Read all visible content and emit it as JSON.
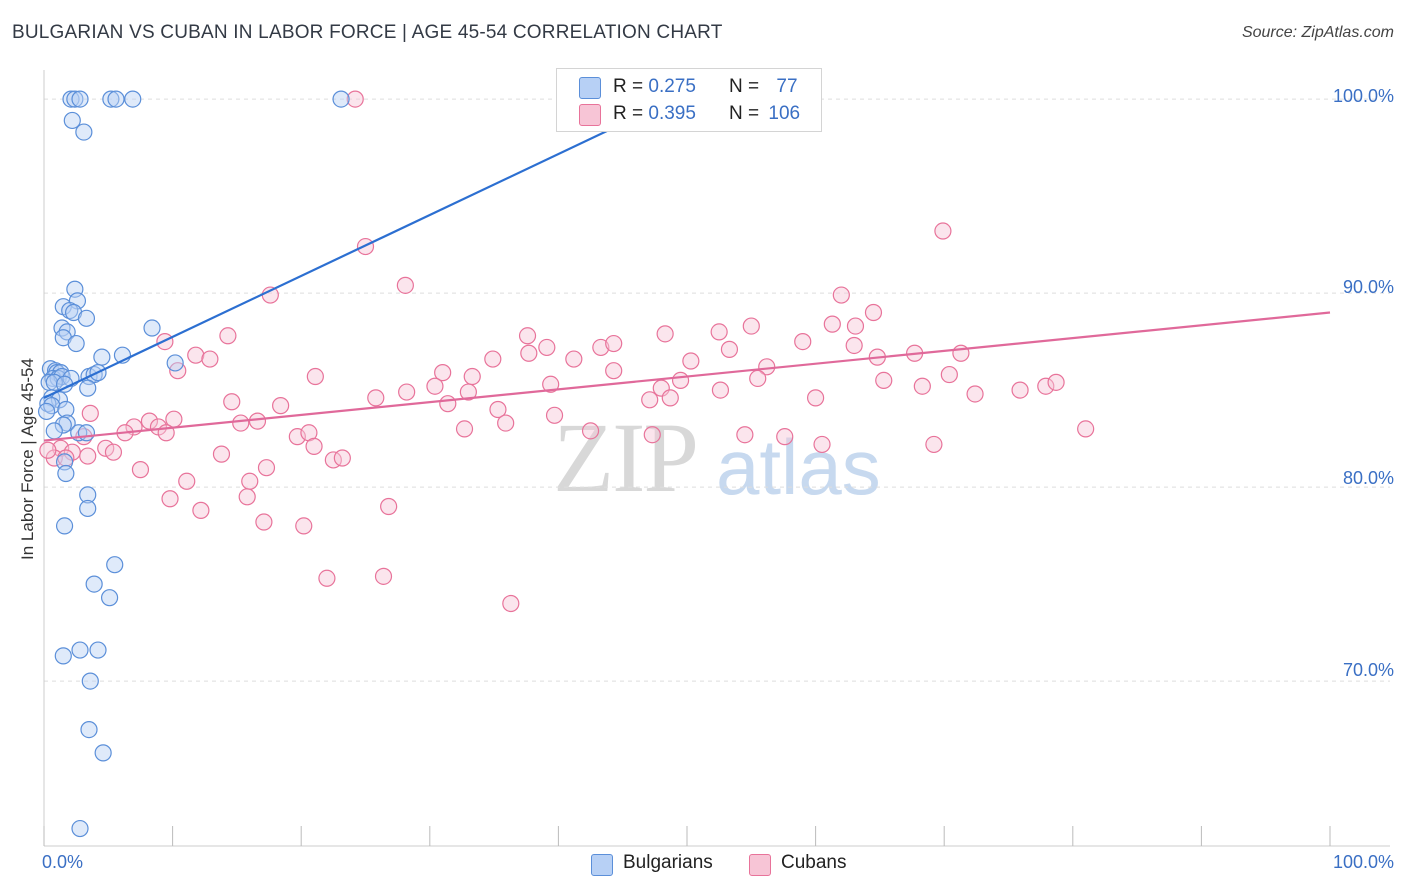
{
  "header": {
    "title": "BULGARIAN VS CUBAN IN LABOR FORCE | AGE 45-54 CORRELATION CHART",
    "source": "Source: ZipAtlas.com"
  },
  "watermark": {
    "zip": "ZIP",
    "atlas": "atlas"
  },
  "legend": {
    "r_label": "R =",
    "n_label": "N =",
    "bulgarians": {
      "r": "0.275",
      "n": "77"
    },
    "cubans": {
      "r": "0.395",
      "n": "106"
    }
  },
  "bottom_legend": {
    "bulgarians": "Bulgarians",
    "cubans": "Cubans"
  },
  "colors": {
    "blue": "#5b8fd9",
    "blue_fill": "#b7d0f5",
    "pink": "#e8739a",
    "pink_fill": "#f7c5d6",
    "blue_line": "#2c6fd1",
    "pink_line": "#e0699a"
  },
  "chart_data": {
    "type": "scatter",
    "title": "BULGARIAN VS CUBAN IN LABOR FORCE | AGE 45-54 CORRELATION CHART",
    "xlabel": "",
    "ylabel": "In Labor Force | Age 45-54",
    "xlim": [
      0,
      100
    ],
    "ylim": [
      61.5,
      101.5
    ],
    "x_tick_labels": [
      "0.0%",
      "100.0%"
    ],
    "y_ticks": [
      {
        "value": 70,
        "label": "70.0%"
      },
      {
        "value": 80,
        "label": "80.0%"
      },
      {
        "value": 90,
        "label": "90.0%"
      },
      {
        "value": 100,
        "label": "100.0%"
      }
    ],
    "grid": true,
    "legend_position": "top-center",
    "series": [
      {
        "name": "Bulgarians",
        "r": 0.275,
        "n": 77,
        "trend": {
          "x": [
            0,
            50.6
          ],
          "y": [
            84.6,
            100.5
          ]
        },
        "points": [
          [
            2.1,
            100
          ],
          [
            2.4,
            100
          ],
          [
            2.8,
            100
          ],
          [
            5.2,
            100
          ],
          [
            5.6,
            100
          ],
          [
            6.9,
            100
          ],
          [
            23.1,
            100
          ],
          [
            2.2,
            98.9
          ],
          [
            3.1,
            98.3
          ],
          [
            2.4,
            90.2
          ],
          [
            2.6,
            89.6
          ],
          [
            1.5,
            89.3
          ],
          [
            2.0,
            89.1
          ],
          [
            2.3,
            89.0
          ],
          [
            3.3,
            88.7
          ],
          [
            1.4,
            88.2
          ],
          [
            1.8,
            88.0
          ],
          [
            1.5,
            87.7
          ],
          [
            2.5,
            87.4
          ],
          [
            8.4,
            88.2
          ],
          [
            6.1,
            86.8
          ],
          [
            4.5,
            86.7
          ],
          [
            10.2,
            86.4
          ],
          [
            0.5,
            86.1
          ],
          [
            0.9,
            86.0
          ],
          [
            1.0,
            85.9
          ],
          [
            1.3,
            85.9
          ],
          [
            0.7,
            85.6
          ],
          [
            1.1,
            85.6
          ],
          [
            1.4,
            85.7
          ],
          [
            2.1,
            85.6
          ],
          [
            0.4,
            85.4
          ],
          [
            0.8,
            85.4
          ],
          [
            1.6,
            85.3
          ],
          [
            3.5,
            85.7
          ],
          [
            3.9,
            85.8
          ],
          [
            4.2,
            85.9
          ],
          [
            3.4,
            85.1
          ],
          [
            0.6,
            84.6
          ],
          [
            1.2,
            84.5
          ],
          [
            0.3,
            84.3
          ],
          [
            0.6,
            84.2
          ],
          [
            1.7,
            84.0
          ],
          [
            0.2,
            83.9
          ],
          [
            1.8,
            83.3
          ],
          [
            1.5,
            83.2
          ],
          [
            0.8,
            82.9
          ],
          [
            2.7,
            82.8
          ],
          [
            3.3,
            82.8
          ],
          [
            1.6,
            81.3
          ],
          [
            1.7,
            80.7
          ],
          [
            3.4,
            79.6
          ],
          [
            3.4,
            78.9
          ],
          [
            1.6,
            78.0
          ],
          [
            5.5,
            76.0
          ],
          [
            3.9,
            75.0
          ],
          [
            5.1,
            74.3
          ],
          [
            1.5,
            71.3
          ],
          [
            2.8,
            71.6
          ],
          [
            4.2,
            71.6
          ],
          [
            3.6,
            70.0
          ],
          [
            3.5,
            67.5
          ],
          [
            4.6,
            66.3
          ],
          [
            2.8,
            62.4
          ]
        ]
      },
      {
        "name": "Cubans",
        "r": 0.395,
        "n": 106,
        "trend": {
          "x": [
            0,
            100
          ],
          "y": [
            82.4,
            89.0
          ]
        },
        "points": [
          [
            24.2,
            100
          ],
          [
            25.0,
            92.4
          ],
          [
            69.9,
            93.2
          ],
          [
            28.1,
            90.4
          ],
          [
            17.6,
            89.9
          ],
          [
            62.0,
            89.9
          ],
          [
            64.5,
            89.0
          ],
          [
            37.6,
            87.8
          ],
          [
            48.3,
            87.9
          ],
          [
            9.4,
            87.5
          ],
          [
            14.3,
            87.8
          ],
          [
            52.5,
            88.0
          ],
          [
            55.0,
            88.3
          ],
          [
            61.3,
            88.4
          ],
          [
            63.1,
            88.3
          ],
          [
            59.0,
            87.5
          ],
          [
            53.3,
            87.1
          ],
          [
            63.0,
            87.3
          ],
          [
            39.1,
            87.2
          ],
          [
            43.3,
            87.2
          ],
          [
            37.7,
            86.9
          ],
          [
            44.3,
            87.4
          ],
          [
            11.8,
            86.8
          ],
          [
            12.9,
            86.6
          ],
          [
            34.9,
            86.6
          ],
          [
            41.2,
            86.6
          ],
          [
            50.3,
            86.5
          ],
          [
            56.2,
            86.2
          ],
          [
            64.8,
            86.7
          ],
          [
            67.7,
            86.9
          ],
          [
            71.3,
            86.9
          ],
          [
            10.4,
            86.0
          ],
          [
            31.0,
            85.9
          ],
          [
            21.1,
            85.7
          ],
          [
            33.3,
            85.7
          ],
          [
            44.3,
            86.0
          ],
          [
            49.5,
            85.5
          ],
          [
            55.5,
            85.6
          ],
          [
            65.3,
            85.5
          ],
          [
            70.4,
            85.8
          ],
          [
            68.3,
            85.2
          ],
          [
            77.9,
            85.2
          ],
          [
            78.7,
            85.4
          ],
          [
            39.4,
            85.3
          ],
          [
            48.0,
            85.1
          ],
          [
            52.6,
            85.0
          ],
          [
            60.0,
            84.6
          ],
          [
            72.4,
            84.8
          ],
          [
            75.9,
            85.0
          ],
          [
            33.0,
            84.9
          ],
          [
            30.4,
            85.2
          ],
          [
            28.2,
            84.9
          ],
          [
            25.8,
            84.6
          ],
          [
            14.6,
            84.4
          ],
          [
            18.4,
            84.2
          ],
          [
            31.4,
            84.3
          ],
          [
            35.3,
            84.0
          ],
          [
            39.7,
            83.7
          ],
          [
            47.1,
            84.5
          ],
          [
            48.7,
            84.6
          ],
          [
            3.6,
            83.8
          ],
          [
            8.2,
            83.4
          ],
          [
            10.1,
            83.5
          ],
          [
            15.3,
            83.3
          ],
          [
            16.6,
            83.4
          ],
          [
            8.9,
            83.1
          ],
          [
            7.0,
            83.1
          ],
          [
            6.3,
            82.8
          ],
          [
            3.1,
            82.6
          ],
          [
            9.5,
            82.8
          ],
          [
            19.7,
            82.6
          ],
          [
            20.6,
            82.8
          ],
          [
            32.7,
            83.0
          ],
          [
            35.9,
            83.3
          ],
          [
            42.5,
            82.9
          ],
          [
            47.3,
            82.7
          ],
          [
            54.5,
            82.7
          ],
          [
            69.2,
            82.2
          ],
          [
            81.0,
            83.0
          ],
          [
            4.8,
            82.0
          ],
          [
            5.4,
            81.8
          ],
          [
            1.3,
            82.0
          ],
          [
            2.2,
            81.8
          ],
          [
            0.8,
            81.5
          ],
          [
            1.7,
            81.5
          ],
          [
            3.4,
            81.6
          ],
          [
            13.8,
            81.7
          ],
          [
            21.0,
            82.1
          ],
          [
            22.5,
            81.4
          ],
          [
            23.2,
            81.5
          ],
          [
            0.3,
            81.9
          ],
          [
            11.1,
            80.3
          ],
          [
            16.0,
            80.3
          ],
          [
            15.8,
            79.5
          ],
          [
            9.8,
            79.4
          ],
          [
            12.2,
            78.8
          ],
          [
            17.1,
            78.2
          ],
          [
            20.2,
            78.0
          ],
          [
            26.8,
            79.0
          ],
          [
            22.0,
            75.3
          ],
          [
            26.4,
            75.4
          ],
          [
            36.3,
            74.0
          ],
          [
            7.5,
            80.9
          ],
          [
            17.3,
            81.0
          ],
          [
            60.5,
            82.2
          ],
          [
            57.6,
            82.6
          ]
        ]
      }
    ]
  }
}
